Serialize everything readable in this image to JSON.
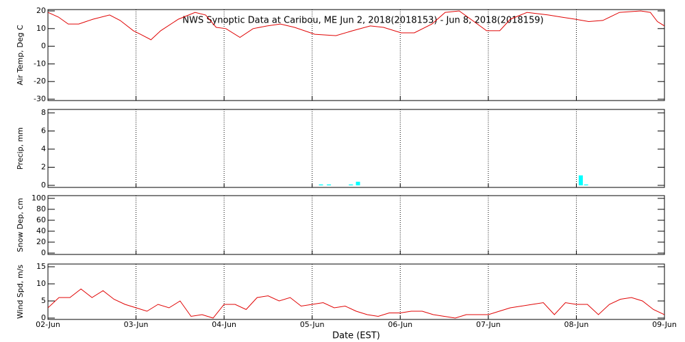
{
  "chart_data": [
    {
      "type": "line",
      "title": "NWS Synoptic Data at Caribou, ME   Jun  2, 2018(2018153) - Jun  8, 2018(2018159)",
      "ylabel": "Air Temp, Deg C",
      "xlim": [
        0,
        7
      ],
      "xticks": [
        0,
        1,
        2,
        3,
        4,
        5,
        6,
        7
      ],
      "ylim": [
        -30,
        20
      ],
      "yticks": [
        -30,
        -20,
        -10,
        0,
        10,
        20
      ],
      "grid": true,
      "series": [
        {
          "color": "#e00000",
          "x": [
            0,
            0.12,
            0.23,
            0.35,
            0.51,
            0.7,
            0.82,
            0.97,
            1.05,
            1.17,
            1.28,
            1.48,
            1.67,
            1.79,
            1.91,
            2.02,
            2.18,
            2.33,
            2.49,
            2.64,
            2.8,
            3.03,
            3.27,
            3.46,
            3.66,
            3.81,
            4.01,
            4.16,
            4.36,
            4.51,
            4.67,
            4.82,
            4.98,
            5.13,
            5.25,
            5.44,
            5.68,
            5.83,
            5.99,
            6.14,
            6.3,
            6.49,
            6.73,
            6.84,
            6.92,
            7
          ],
          "values": [
            19.2,
            16.5,
            12.6,
            12.6,
            15.3,
            17.7,
            14.6,
            8.8,
            6.8,
            3.7,
            8.8,
            15.3,
            19.2,
            17.7,
            10.7,
            10,
            5,
            10,
            11.5,
            12.6,
            10.7,
            6.8,
            6,
            8.8,
            11.5,
            10.7,
            7.6,
            7.6,
            12.6,
            19.2,
            20,
            14.6,
            8.8,
            8.8,
            15.3,
            19.2,
            17.7,
            16.5,
            15.3,
            14,
            14.6,
            19.2,
            20,
            19.2,
            14,
            11.5
          ]
        }
      ]
    },
    {
      "type": "bar",
      "ylabel": "Precip, mm",
      "xlim": [
        0,
        7
      ],
      "xticks": [
        0,
        1,
        2,
        3,
        4,
        5,
        6,
        7
      ],
      "ylim": [
        0,
        8
      ],
      "yticks": [
        0,
        2,
        4,
        6,
        8
      ],
      "grid": true,
      "color": "#00ffff",
      "x": [
        3.1,
        3.19,
        3.44,
        3.52,
        6.05,
        6.11
      ],
      "values": [
        0.1,
        0.1,
        0.1,
        0.4,
        1.1,
        0.1
      ]
    },
    {
      "type": "line",
      "ylabel": "Snow Dep, cm",
      "xlim": [
        0,
        7
      ],
      "xticks": [
        0,
        1,
        2,
        3,
        4,
        5,
        6,
        7
      ],
      "ylim": [
        0,
        100
      ],
      "yticks": [
        0,
        20,
        40,
        60,
        80,
        100
      ],
      "grid": true,
      "series": []
    },
    {
      "type": "line",
      "ylabel": "Wind Spd, m/s",
      "xlabel": "Date (EST)",
      "xlim": [
        0,
        7
      ],
      "xticks": [
        {
          "value": 0,
          "label": "02-Jun"
        },
        {
          "value": 1,
          "label": "03-Jun"
        },
        {
          "value": 2,
          "label": "04-Jun"
        },
        {
          "value": 3,
          "label": "05-Jun"
        },
        {
          "value": 4,
          "label": "06-Jun"
        },
        {
          "value": 5,
          "label": "07-Jun"
        },
        {
          "value": 6,
          "label": "08-Jun"
        },
        {
          "value": 7,
          "label": "09-Jun"
        }
      ],
      "ylim": [
        0,
        15
      ],
      "yticks": [
        0,
        5,
        10,
        15
      ],
      "grid": true,
      "series": [
        {
          "color": "#e00000",
          "x": [
            0,
            0.125,
            0.25,
            0.375,
            0.5,
            0.625,
            0.75,
            0.875,
            1,
            1.125,
            1.25,
            1.375,
            1.5,
            1.625,
            1.75,
            1.875,
            2,
            2.125,
            2.25,
            2.375,
            2.5,
            2.625,
            2.75,
            2.875,
            3,
            3.125,
            3.25,
            3.375,
            3.5,
            3.625,
            3.75,
            3.875,
            4,
            4.125,
            4.25,
            4.375,
            4.5,
            4.625,
            4.75,
            4.875,
            5,
            5.125,
            5.25,
            5.375,
            5.5,
            5.625,
            5.75,
            5.875,
            6,
            6.125,
            6.25,
            6.375,
            6.5,
            6.625,
            6.75,
            6.875,
            7
          ],
          "values": [
            3,
            6,
            6,
            8.5,
            6,
            8,
            5.5,
            4,
            3,
            2,
            4,
            3,
            5,
            0.5,
            1,
            0,
            4,
            4,
            2.5,
            6,
            6.5,
            5,
            6,
            3.5,
            4,
            4.5,
            3,
            3.5,
            2,
            1,
            0.5,
            1.5,
            1.5,
            2,
            2,
            1,
            0.5,
            0,
            1,
            1,
            1,
            2,
            3,
            3.5,
            4,
            4.5,
            1,
            4.5,
            4,
            4,
            1,
            4,
            5.5,
            6,
            5,
            2.5,
            1
          ]
        }
      ]
    }
  ]
}
